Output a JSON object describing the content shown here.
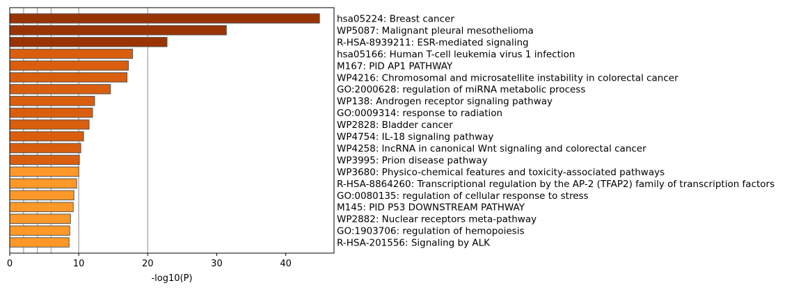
{
  "chart_data": {
    "type": "bar",
    "orientation": "horizontal",
    "xlabel": "-log10(P)",
    "ylabel": "",
    "title": "",
    "xlim": [
      0,
      47
    ],
    "xticks": [
      0,
      10,
      20,
      30,
      40
    ],
    "gridlines_x": [
      2,
      4,
      6,
      10,
      20
    ],
    "grid": true,
    "categories": [
      "hsa05224: Breast cancer",
      "WP5087: Malignant pleural mesothelioma",
      "R-HSA-8939211: ESR-mediated signaling",
      "hsa05166: Human T-cell leukemia virus 1 infection",
      "M167: PID AP1 PATHWAY",
      "WP4216: Chromosomal and microsatellite instability in colorectal cancer",
      "GO:2000628: regulation of miRNA metabolic process",
      "WP138: Androgen receptor signaling pathway",
      "GO:0009314: response to radiation",
      "WP2828: Bladder cancer",
      "WP4754: IL-18 signaling pathway",
      "WP4258: lncRNA in canonical Wnt signaling and colorectal cancer",
      "WP3995: Prion disease pathway",
      "WP3680: Physico-chemical features and toxicity-associated pathways",
      "R-HSA-8864260: Transcriptional regulation by the AP-2 (TFAP2) family of transcription factors",
      "GO:0080135: regulation of cellular response to stress",
      "M145: PID P53 DOWNSTREAM PATHWAY",
      "WP2882: Nuclear receptors meta-pathway",
      "GO:1903706: regulation of hemopoiesis",
      "R-HSA-201556: Signaling by ALK"
    ],
    "values": [
      44.9,
      31.4,
      22.8,
      17.8,
      17.2,
      17.0,
      14.6,
      12.3,
      12.0,
      11.5,
      10.7,
      10.3,
      10.1,
      10.0,
      9.7,
      9.3,
      9.2,
      8.8,
      8.7,
      8.6
    ],
    "bar_colors": [
      "#993404",
      "#993404",
      "#993404",
      "#d95f0e",
      "#d95f0e",
      "#d95f0e",
      "#d95f0e",
      "#d95f0e",
      "#d95f0e",
      "#d95f0e",
      "#d95f0e",
      "#d95f0e",
      "#d95f0e",
      "#fe9929",
      "#fe9929",
      "#fe9929",
      "#fe9929",
      "#fe9929",
      "#fe9929",
      "#fe9929"
    ],
    "bar_edge_color": "#555555",
    "gridline_color": "#b0b0b0"
  }
}
